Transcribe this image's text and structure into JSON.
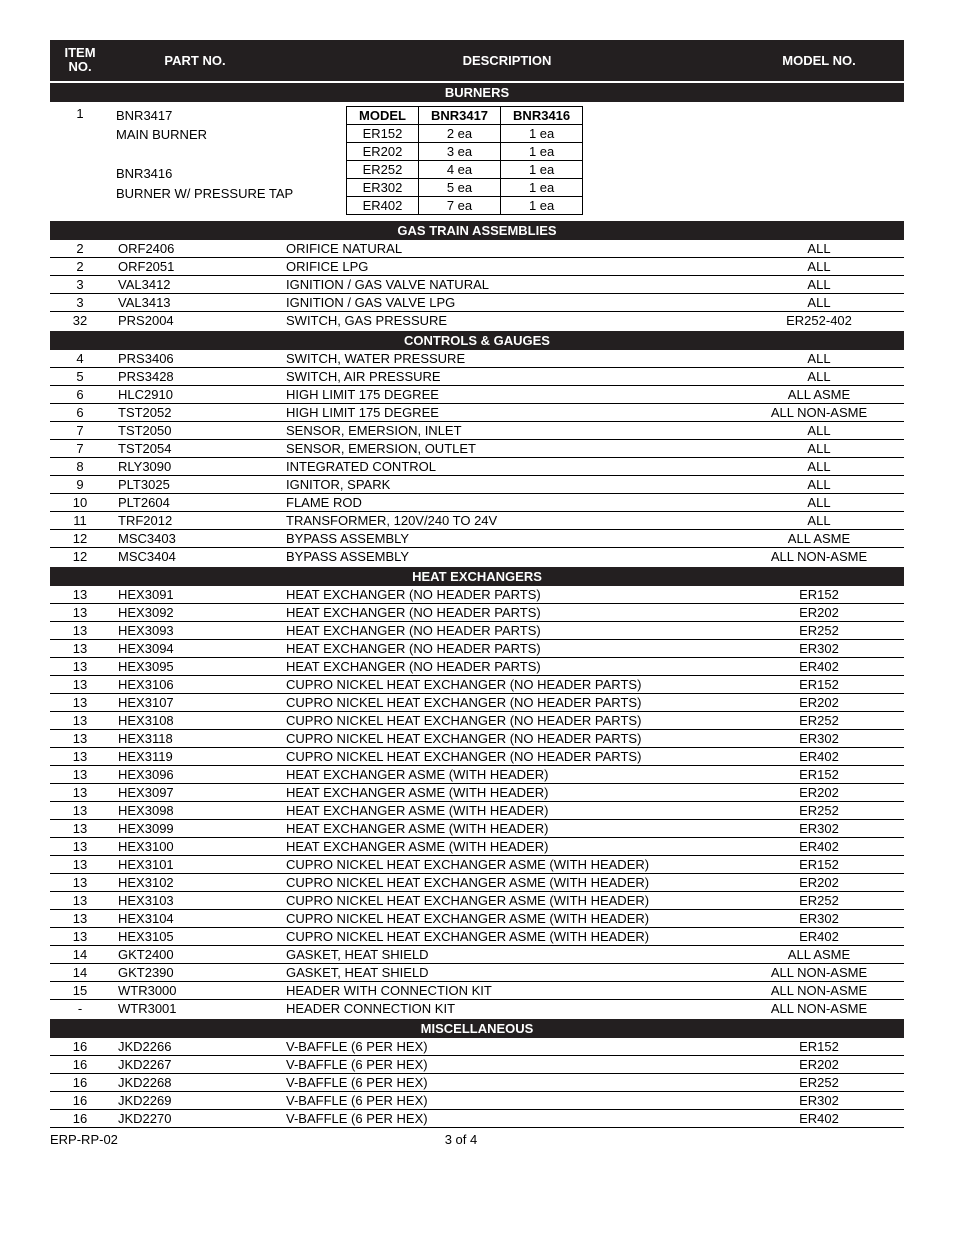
{
  "header": {
    "item": "ITEM NO.",
    "part": "PART NO.",
    "desc": "DESCRIPTION",
    "model": "MODEL NO."
  },
  "burners": {
    "title": "BURNERS",
    "item": "1",
    "left_lines": [
      "BNR3417",
      "MAIN BURNER",
      "",
      "BNR3416",
      "BURNER W/ PRESSURE TAP"
    ],
    "sub_header": [
      "MODEL",
      "BNR3417",
      "BNR3416"
    ],
    "sub_rows": [
      [
        "ER152",
        "2 ea",
        "1 ea"
      ],
      [
        "ER202",
        "3 ea",
        "1 ea"
      ],
      [
        "ER252",
        "4 ea",
        "1 ea"
      ],
      [
        "ER302",
        "5 ea",
        "1 ea"
      ],
      [
        "ER402",
        "7 ea",
        "1 ea"
      ]
    ]
  },
  "sections": [
    {
      "title": "GAS TRAIN ASSEMBLIES",
      "rows": [
        {
          "item": "2",
          "part": "ORF2406",
          "desc": "ORIFICE NATURAL",
          "model": "ALL"
        },
        {
          "item": "2",
          "part": "ORF2051",
          "desc": "ORIFICE LPG",
          "model": "ALL"
        },
        {
          "item": "3",
          "part": "VAL3412",
          "desc": "IGNITION / GAS VALVE NATURAL",
          "model": "ALL"
        },
        {
          "item": "3",
          "part": "VAL3413",
          "desc": "IGNITION / GAS VALVE LPG",
          "model": "ALL"
        },
        {
          "item": "32",
          "part": "PRS2004",
          "desc": "SWITCH, GAS PRESSURE",
          "model": "ER252-402"
        }
      ]
    },
    {
      "title": "CONTROLS & GAUGES",
      "rows": [
        {
          "item": "4",
          "part": "PRS3406",
          "desc": "SWITCH, WATER PRESSURE",
          "model": "ALL"
        },
        {
          "item": "5",
          "part": "PRS3428",
          "desc": "SWITCH, AIR PRESSURE",
          "model": "ALL"
        },
        {
          "item": "6",
          "part": "HLC2910",
          "desc": "HIGH LIMIT 175 DEGREE",
          "model": "ALL ASME"
        },
        {
          "item": "6",
          "part": "TST2052",
          "desc": "HIGH LIMIT 175 DEGREE",
          "model": "ALL NON-ASME"
        },
        {
          "item": "7",
          "part": "TST2050",
          "desc": "SENSOR, EMERSION, INLET",
          "model": "ALL"
        },
        {
          "item": "7",
          "part": "TST2054",
          "desc": "SENSOR, EMERSION, OUTLET",
          "model": "ALL"
        },
        {
          "item": "8",
          "part": "RLY3090",
          "desc": "INTEGRATED CONTROL",
          "model": "ALL"
        },
        {
          "item": "9",
          "part": "PLT3025",
          "desc": "IGNITOR, SPARK",
          "model": "ALL"
        },
        {
          "item": "10",
          "part": "PLT2604",
          "desc": "FLAME ROD",
          "model": "ALL"
        },
        {
          "item": "11",
          "part": "TRF2012",
          "desc": "TRANSFORMER, 120V/240 TO 24V",
          "model": "ALL"
        },
        {
          "item": "12",
          "part": "MSC3403",
          "desc": "BYPASS ASSEMBLY",
          "model": "ALL ASME"
        },
        {
          "item": "12",
          "part": "MSC3404",
          "desc": "BYPASS ASSEMBLY",
          "model": "ALL NON-ASME"
        }
      ]
    },
    {
      "title": "HEAT EXCHANGERS",
      "rows": [
        {
          "item": "13",
          "part": "HEX3091",
          "desc": "HEAT EXCHANGER (NO HEADER PARTS)",
          "model": "ER152"
        },
        {
          "item": "13",
          "part": "HEX3092",
          "desc": "HEAT EXCHANGER (NO HEADER PARTS)",
          "model": "ER202"
        },
        {
          "item": "13",
          "part": "HEX3093",
          "desc": "HEAT EXCHANGER (NO HEADER PARTS)",
          "model": "ER252"
        },
        {
          "item": "13",
          "part": "HEX3094",
          "desc": "HEAT EXCHANGER (NO HEADER PARTS)",
          "model": "ER302"
        },
        {
          "item": "13",
          "part": "HEX3095",
          "desc": "HEAT EXCHANGER (NO HEADER PARTS)",
          "model": "ER402"
        },
        {
          "item": "13",
          "part": "HEX3106",
          "desc": "CUPRO NICKEL HEAT EXCHANGER (NO HEADER PARTS)",
          "model": "ER152"
        },
        {
          "item": "13",
          "part": "HEX3107",
          "desc": "CUPRO NICKEL HEAT EXCHANGER (NO HEADER PARTS)",
          "model": "ER202"
        },
        {
          "item": "13",
          "part": "HEX3108",
          "desc": "CUPRO NICKEL HEAT EXCHANGER (NO HEADER PARTS)",
          "model": "ER252"
        },
        {
          "item": "13",
          "part": "HEX3118",
          "desc": "CUPRO NICKEL HEAT EXCHANGER (NO HEADER PARTS)",
          "model": "ER302"
        },
        {
          "item": "13",
          "part": "HEX3119",
          "desc": "CUPRO NICKEL HEAT EXCHANGER (NO HEADER PARTS)",
          "model": "ER402"
        },
        {
          "item": "13",
          "part": "HEX3096",
          "desc": "HEAT EXCHANGER ASME (WITH HEADER)",
          "model": "ER152"
        },
        {
          "item": "13",
          "part": "HEX3097",
          "desc": "HEAT EXCHANGER ASME (WITH HEADER)",
          "model": "ER202"
        },
        {
          "item": "13",
          "part": "HEX3098",
          "desc": "HEAT EXCHANGER ASME (WITH HEADER)",
          "model": "ER252"
        },
        {
          "item": "13",
          "part": "HEX3099",
          "desc": "HEAT EXCHANGER ASME (WITH HEADER)",
          "model": "ER302"
        },
        {
          "item": "13",
          "part": "HEX3100",
          "desc": "HEAT EXCHANGER ASME (WITH HEADER)",
          "model": "ER402"
        },
        {
          "item": "13",
          "part": "HEX3101",
          "desc": "CUPRO NICKEL HEAT EXCHANGER ASME (WITH HEADER)",
          "model": "ER152"
        },
        {
          "item": "13",
          "part": "HEX3102",
          "desc": "CUPRO NICKEL HEAT EXCHANGER ASME (WITH HEADER)",
          "model": "ER202"
        },
        {
          "item": "13",
          "part": "HEX3103",
          "desc": "CUPRO NICKEL HEAT EXCHANGER ASME (WITH HEADER)",
          "model": "ER252"
        },
        {
          "item": "13",
          "part": "HEX3104",
          "desc": "CUPRO NICKEL HEAT EXCHANGER ASME (WITH HEADER)",
          "model": "ER302"
        },
        {
          "item": "13",
          "part": "HEX3105",
          "desc": "CUPRO NICKEL HEAT EXCHANGER ASME (WITH HEADER)",
          "model": "ER402"
        },
        {
          "item": "14",
          "part": "GKT2400",
          "desc": "GASKET, HEAT SHIELD",
          "model": "ALL ASME"
        },
        {
          "item": "14",
          "part": "GKT2390",
          "desc": "GASKET, HEAT SHIELD",
          "model": "ALL NON-ASME"
        },
        {
          "item": "15",
          "part": "WTR3000",
          "desc": "HEADER WITH CONNECTION KIT",
          "model": "ALL NON-ASME"
        },
        {
          "item": "-",
          "part": "WTR3001",
          "desc": "HEADER CONNECTION KIT",
          "model": "ALL NON-ASME"
        }
      ]
    },
    {
      "title": "MISCELLANEOUS",
      "rows": [
        {
          "item": "16",
          "part": "JKD2266",
          "desc": "V-BAFFLE (6 PER HEX)",
          "model": "ER152"
        },
        {
          "item": "16",
          "part": "JKD2267",
          "desc": "V-BAFFLE (6 PER HEX)",
          "model": "ER202"
        },
        {
          "item": "16",
          "part": "JKD2268",
          "desc": "V-BAFFLE (6 PER HEX)",
          "model": "ER252"
        },
        {
          "item": "16",
          "part": "JKD2269",
          "desc": "V-BAFFLE (6 PER HEX)",
          "model": "ER302"
        },
        {
          "item": "16",
          "part": "JKD2270",
          "desc": "V-BAFFLE (6 PER HEX)",
          "model": "ER402"
        }
      ]
    }
  ],
  "footer": {
    "left": "ERP-RP-02",
    "center": "3 of 4"
  }
}
